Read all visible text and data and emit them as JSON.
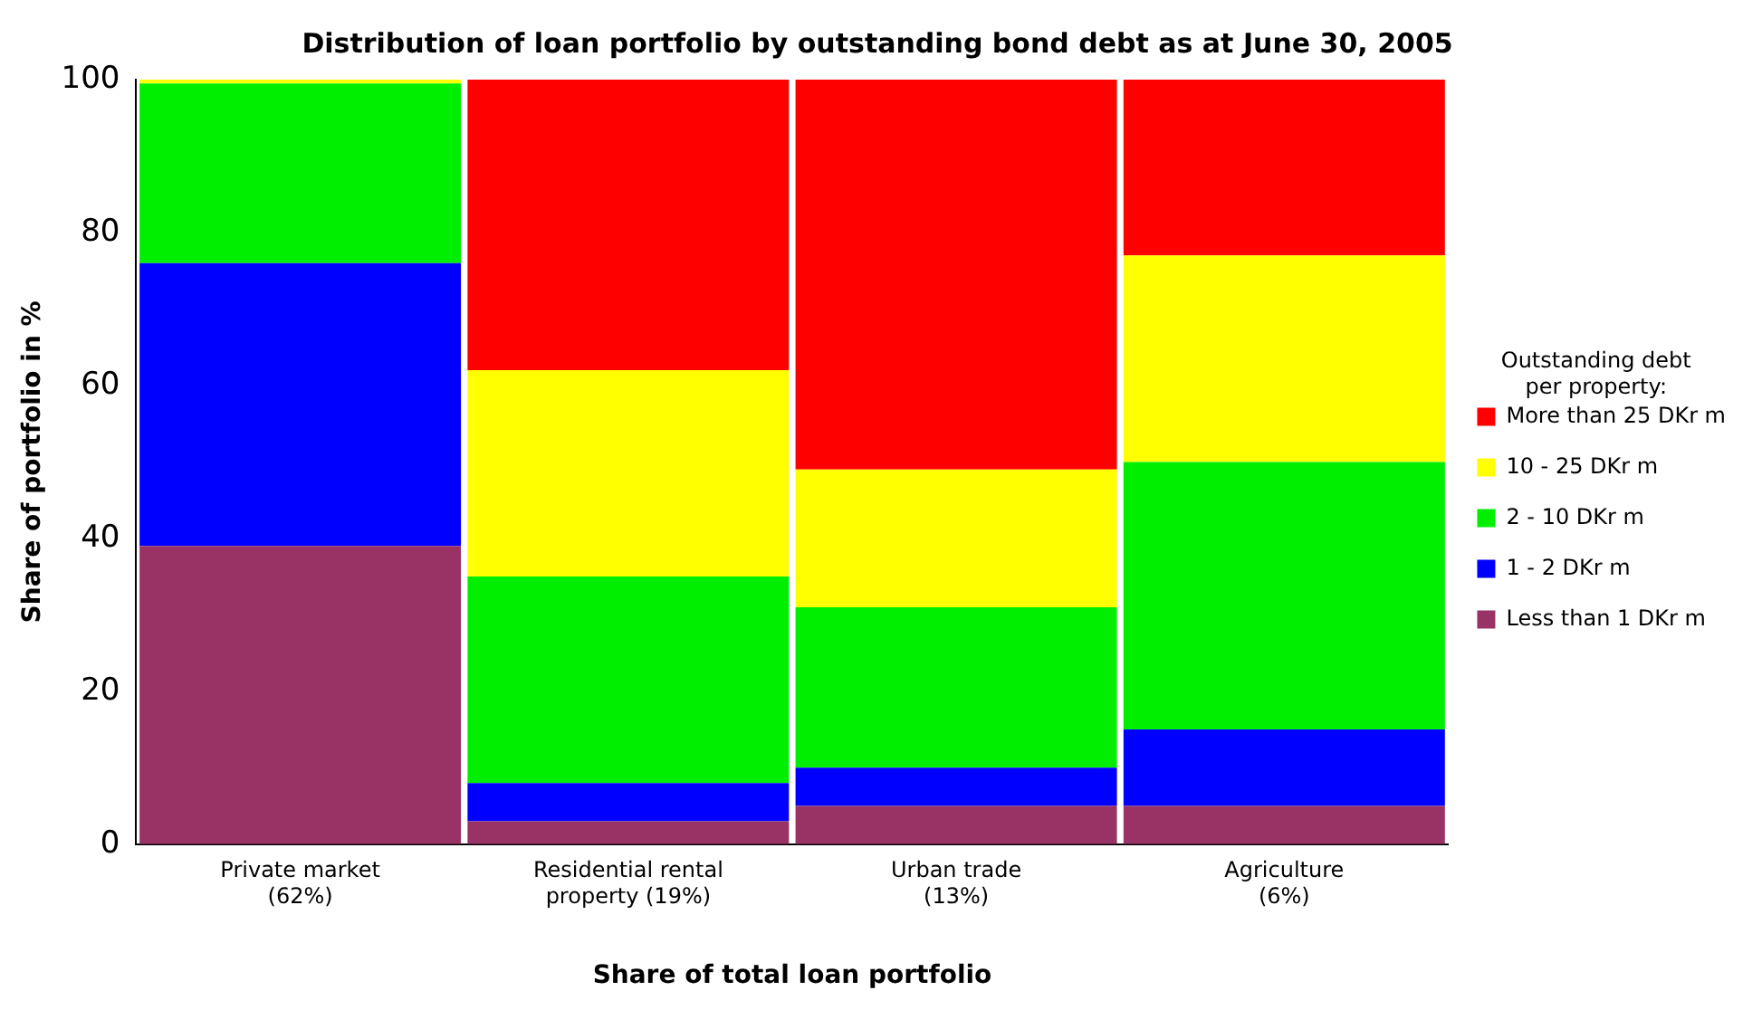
{
  "chart_data": {
    "type": "bar",
    "stacked": true,
    "title": "Distribution of loan portfolio by outstanding bond debt as at June 30, 2005",
    "xlabel": "Share of total loan portfolio",
    "ylabel": "Share of portfolio in %",
    "legend_title": "Outstanding debt\nper property:",
    "legend": "right",
    "grid": false,
    "categories": [
      "Private market\n(62%)",
      "Residential rental\nproperty (19%)",
      "Urban trade\n(13%)",
      "Agriculture\n(6%)"
    ],
    "ylim": [
      0,
      100
    ],
    "yticks": [
      0,
      20,
      40,
      60,
      80,
      100
    ],
    "series": [
      {
        "name": "Less than 1 DKr m",
        "color": "#993366",
        "values": [
          39,
          3,
          5,
          5
        ]
      },
      {
        "name": "1 - 2 DKr m",
        "color": "#0000ff",
        "values": [
          37,
          5,
          5,
          10
        ]
      },
      {
        "name": "2 - 10 DKr m",
        "color": "#00ee00",
        "values": [
          23.5,
          27,
          21,
          35
        ]
      },
      {
        "name": "10 - 25 DKr m",
        "color": "#ffff00",
        "values": [
          0.5,
          27,
          18,
          27
        ]
      },
      {
        "name": "More than 25 DKr m",
        "color": "#ff0000",
        "values": [
          0,
          38,
          51,
          23
        ]
      }
    ]
  }
}
